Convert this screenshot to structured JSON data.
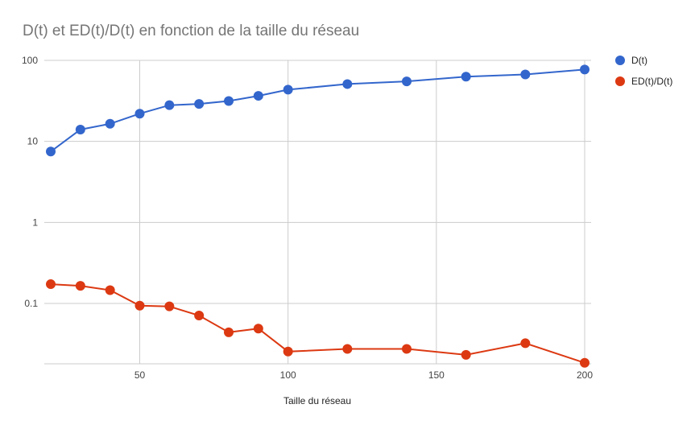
{
  "chart_data": {
    "type": "line",
    "title": "D(t) et ED(t)/D(t) en fonction de la taille du réseau",
    "xlabel": "Taille du réseau",
    "ylabel": "",
    "xlim": [
      20,
      200
    ],
    "ylim": [
      0.018,
      100
    ],
    "yscale": "log",
    "x_ticks": [
      50,
      100,
      150,
      200
    ],
    "y_ticks": [
      {
        "value": 100,
        "label": "100"
      },
      {
        "value": 10,
        "label": "10"
      },
      {
        "value": 1,
        "label": "1"
      },
      {
        "value": 0.1,
        "label": "0.1"
      }
    ],
    "grid": true,
    "legend_position": "right",
    "x": [
      20,
      30,
      40,
      50,
      60,
      70,
      80,
      90,
      100,
      120,
      140,
      160,
      180,
      200
    ],
    "series": [
      {
        "name": "D(t)",
        "color": "#3366cc",
        "values": [
          7.5,
          14,
          16.5,
          22,
          28,
          29,
          31.5,
          36.5,
          43.5,
          51,
          55,
          63,
          67,
          77
        ]
      },
      {
        "name": "ED(t)/D(t)",
        "color": "#dc3912",
        "values": [
          0.173,
          0.165,
          0.146,
          0.094,
          0.092,
          0.071,
          0.044,
          0.049,
          0.0255,
          0.0275,
          0.0275,
          0.0232,
          0.0323,
          0.0185
        ]
      }
    ]
  }
}
